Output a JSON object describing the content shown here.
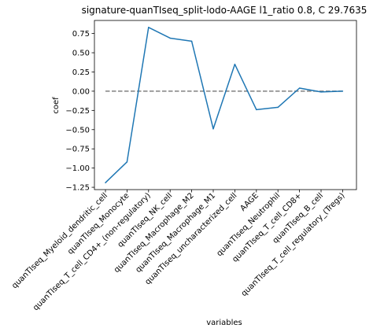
{
  "chart_data": {
    "type": "line",
    "title": "signature-quanTIseq_split-lodo-AAGE l1_ratio 0.8, C 29.7635",
    "xlabel": "variables",
    "ylabel": "coef",
    "categories": [
      "quanTIseq_Myeloid_dendritic_cell",
      "quanTIseq_Monocyte",
      "quanTIseq_T_cell_CD4+_(non-regulatory)",
      "quanTIseq_NK_cell",
      "quanTIseq_Macrophage_M2",
      "quanTIseq_Macrophage_M1",
      "quanTIseq_uncharacterized_cell",
      "AAGE",
      "quanTIseq_Neutrophil",
      "quanTIseq_T_cell_CD8+",
      "quanTIseq_B_cell",
      "quanTIseq_T_cell_regulatory_(Tregs)"
    ],
    "series": [
      {
        "values": [
          -1.19,
          -0.92,
          0.83,
          0.69,
          0.65,
          -0.49,
          0.35,
          -0.24,
          -0.21,
          0.04,
          -0.01,
          0.0
        ],
        "color": "#1f77b4"
      }
    ],
    "reference_line": {
      "y": 0,
      "style": "dashed",
      "color": "#808080"
    },
    "ylim": [
      -1.28,
      0.92
    ],
    "yticks": [
      -1.25,
      -1.0,
      -0.75,
      -0.5,
      -0.25,
      0.0,
      0.25,
      0.5,
      0.75
    ],
    "ytick_labels": [
      "−1.25",
      "−1.00",
      "−0.75",
      "−0.50",
      "−0.25",
      "0.00",
      "0.25",
      "0.50",
      "0.75"
    ],
    "grid": false,
    "legend": "none"
  }
}
